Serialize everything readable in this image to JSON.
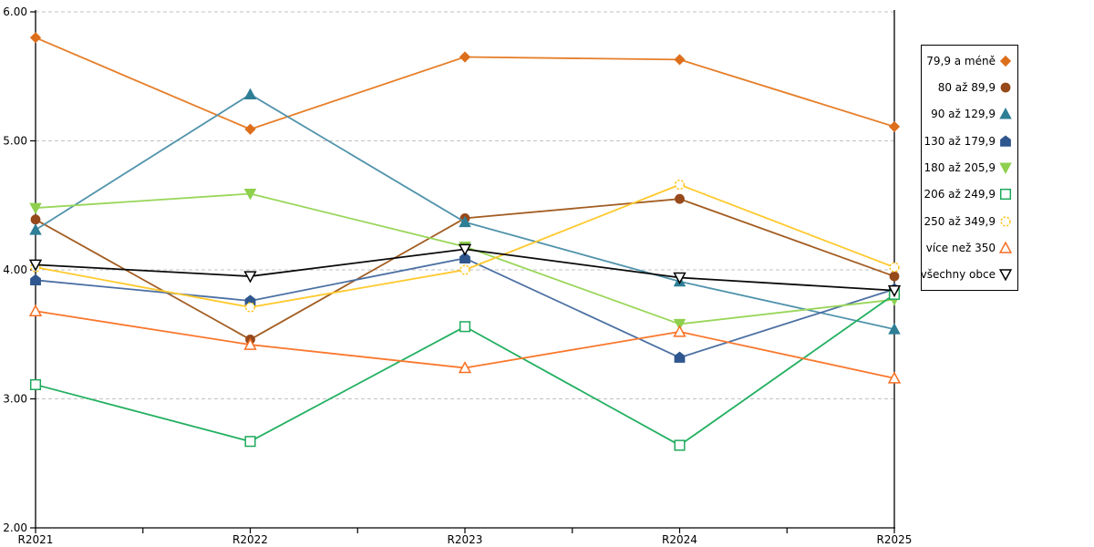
{
  "chart_data": {
    "type": "line",
    "title": "",
    "xlabel": "",
    "ylabel": "",
    "categories": [
      "R2021",
      "R2022",
      "R2023",
      "R2024",
      "R2025"
    ],
    "series": [
      {
        "name": "79,9 a méně",
        "marker": "diamond",
        "filled": true,
        "color": "#DD6F1C",
        "line_color": "#E67E29",
        "values": [
          5.8,
          5.09,
          5.65,
          5.63,
          5.11
        ]
      },
      {
        "name": "80 až 89,9",
        "marker": "circle",
        "filled": true,
        "color": "#96491A",
        "line_color": "#A35D22",
        "values": [
          4.39,
          3.46,
          4.4,
          4.55,
          3.95
        ]
      },
      {
        "name": "90 až 129,9",
        "marker": "triangle-up",
        "filled": true,
        "color": "#2E7E96",
        "line_color": "#5093AB",
        "values": [
          4.31,
          5.36,
          4.37,
          3.91,
          3.54
        ]
      },
      {
        "name": "130 až 179,9",
        "marker": "pentagon",
        "filled": true,
        "color": "#2F568E",
        "line_color": "#4C70A3",
        "values": [
          3.92,
          3.76,
          4.09,
          3.32,
          3.85
        ]
      },
      {
        "name": "180 až 205,9",
        "marker": "triangle-down",
        "filled": true,
        "color": "#8ED04E",
        "line_color": "#99D65A",
        "values": [
          4.48,
          4.59,
          4.18,
          3.58,
          3.77
        ]
      },
      {
        "name": "206 až 249,9",
        "marker": "square",
        "filled": false,
        "color": "#1EAA5C",
        "line_color": "#23B061",
        "values": [
          3.11,
          2.67,
          3.56,
          2.64,
          3.81
        ]
      },
      {
        "name": "250 až 349,9",
        "marker": "circle",
        "filled": false,
        "color": "#FFC41E",
        "line_color": "#FFC92C",
        "values": [
          4.02,
          3.71,
          4.0,
          4.66,
          4.02
        ]
      },
      {
        "name": "více než 350",
        "marker": "triangle-up",
        "filled": false,
        "color": "#F86F22",
        "line_color": "#FA782E",
        "values": [
          3.68,
          3.42,
          3.24,
          3.52,
          3.16
        ]
      },
      {
        "name": "všechny obce",
        "marker": "triangle-down",
        "filled": false,
        "color": "#000000",
        "line_color": "#0A0A0A",
        "values": [
          4.04,
          3.95,
          4.16,
          3.94,
          3.84
        ]
      }
    ],
    "ylim": [
      2,
      6
    ],
    "ytick_labels": [
      "2.00",
      "3.00",
      "4.00",
      "5.00",
      "6.00"
    ],
    "ytick_values": [
      2,
      3,
      4,
      5,
      6
    ],
    "grid": "horizontal-dashed",
    "legend_position": "right"
  },
  "colors": {
    "background": "#FFFFFF",
    "grid": "#C2C2C2",
    "axis": "#000000",
    "legend_border": "#000000"
  }
}
